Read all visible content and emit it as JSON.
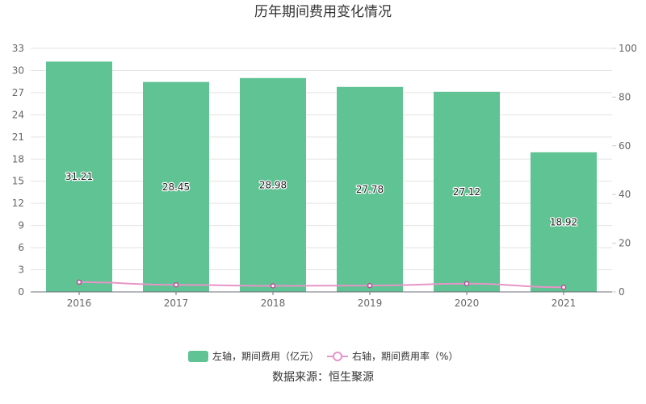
{
  "chart_data": {
    "type": "bar",
    "title": "历年期间费用变化情况",
    "categories": [
      "2016",
      "2017",
      "2018",
      "2019",
      "2020",
      "2021"
    ],
    "series": [
      {
        "name": "左轴，期间费用（亿元）",
        "type": "bar",
        "axis": "left",
        "values": [
          31.21,
          28.45,
          28.98,
          27.78,
          27.12,
          18.92
        ]
      },
      {
        "name": "右轴，期间费用率（%）",
        "type": "line",
        "axis": "right",
        "values": [
          4.0,
          2.9,
          2.5,
          2.6,
          3.4,
          1.9
        ]
      }
    ],
    "y_left": {
      "min": 0,
      "max": 33,
      "ticks": [
        "0",
        "3",
        "6",
        "9",
        "12",
        "15",
        "18",
        "21",
        "24",
        "27",
        "30",
        "33"
      ]
    },
    "y_right": {
      "min": 0,
      "max": 100,
      "ticks": [
        "0",
        "20",
        "40",
        "60",
        "80",
        "100"
      ]
    },
    "grid": true,
    "legend_position": "bottom",
    "colors": {
      "bar": "#5fc393",
      "line": "#e695c8",
      "line_marker": "#c04a9a"
    }
  },
  "source_text": "数据来源：恒生聚源"
}
